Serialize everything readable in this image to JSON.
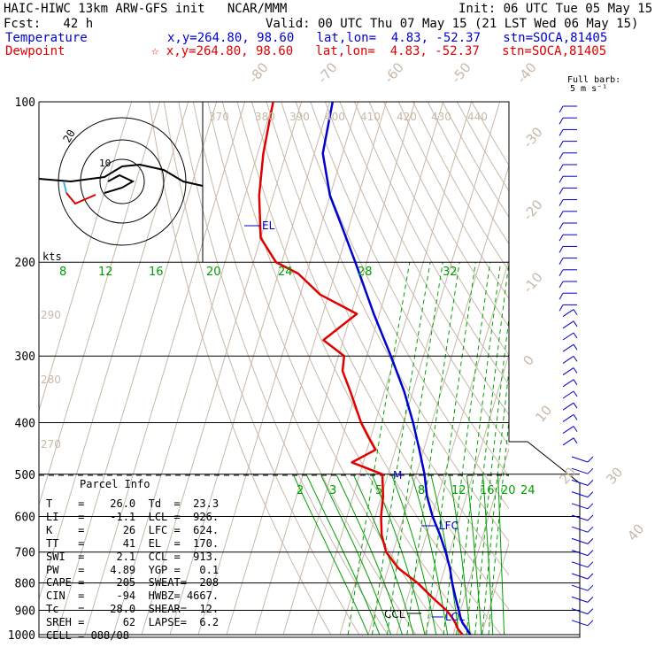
{
  "header": {
    "title": "HAIC-HIWC 13km ARW-GFS init   NCAR/MMM",
    "init": "Init: 06 UTC Tue 05 May 15",
    "fcst": "Fcst:   42 h",
    "valid": "Valid: 00 UTC Thu 07 May 15 (21 LST Wed 06 May 15)",
    "temp_label": "Temperature",
    "temp_loc": "x,y=264.80, 98.60   lat,lon=  4.83, -52.37   stn=SOCA,81405",
    "dew_label": "Dewpoint",
    "dew_loc": "☆ x,y=264.80, 98.60   lat,lon=  4.83, -52.37   stn=SOCA,81405",
    "barb_key_1": "Full barb:",
    "barb_key_2": "5 m s⁻¹"
  },
  "colors": {
    "temperature": "#0000d0",
    "dewpoint": "#e00000",
    "isotherm": "#c8b8a8",
    "mixing": "#00a000"
  },
  "chart_data": {
    "type": "line",
    "chart_kind": "skew-T log-P",
    "pressure_ticks": [
      "100",
      "200",
      "300",
      "400",
      "500",
      "600",
      "700",
      "800",
      "900",
      "1000"
    ],
    "pressure_levels": [
      100,
      200,
      300,
      400,
      500,
      600,
      700,
      800,
      900,
      1000
    ],
    "isotherm_labels": [
      "-80",
      "-70",
      "-60",
      "-50",
      "-40",
      "-30",
      "-20",
      "-10",
      "0",
      "10",
      "20",
      "30",
      "40"
    ],
    "theta_labels": [
      "370",
      "380",
      "390",
      "400",
      "410",
      "420",
      "430",
      "440"
    ],
    "theta_side_labels": [
      "290",
      "280",
      "270"
    ],
    "mixing_upper_labels": [
      "8",
      "12",
      "16",
      "20",
      "24",
      "28",
      "32"
    ],
    "mixing_lower_labels": [
      "2",
      "3",
      "5",
      "8",
      "12",
      "16",
      "20",
      "24"
    ],
    "temperature": {
      "name": "Temperature",
      "p": [
        1000,
        975,
        950,
        925,
        900,
        850,
        800,
        750,
        700,
        650,
        600,
        550,
        500,
        450,
        400,
        350,
        300,
        250,
        200,
        170,
        150,
        125,
        100
      ],
      "T": [
        26.0,
        24.1,
        22.0,
        20.6,
        19.4,
        16.8,
        14.2,
        11.8,
        8.6,
        4.8,
        0.2,
        -3.9,
        -7.1,
        -11.5,
        -16.6,
        -23.0,
        -31.5,
        -42.0,
        -54.0,
        -63.0,
        -70.0,
        -77.0,
        -79.0
      ]
    },
    "dewpoint": {
      "name": "Dewpoint",
      "p": [
        1000,
        975,
        950,
        925,
        900,
        850,
        800,
        750,
        700,
        650,
        600,
        550,
        500,
        475,
        450,
        425,
        400,
        350,
        320,
        300,
        280,
        250,
        230,
        210,
        200,
        180,
        150,
        125,
        100
      ],
      "Td": [
        23.3,
        21.0,
        19.5,
        17.5,
        15.0,
        8.5,
        2.0,
        -6.5,
        -12.4,
        -15.8,
        -18.0,
        -19.4,
        -22.0,
        -34.0,
        -27.0,
        -31.0,
        -35.0,
        -42.0,
        -47.0,
        -48.0,
        -57.0,
        -48.0,
        -63.0,
        -73.0,
        -82.0,
        -90.0,
        -95.0,
        -98.0,
        -100.0
      ]
    },
    "annotations": [
      "EL",
      "LFC",
      "CCL",
      "LCL",
      "M",
      "kts"
    ],
    "parcel_info": {
      "title": "Parcel Info",
      "rows": [
        "T    =    26.0  Td  =  23.3",
        "LI   =    -1.1  LCL =  926.",
        "K    =      26  LFC =  624.",
        "TT   =      41  EL  =  170.",
        "SWI  =     2.1  CCL =  913.",
        "PW   =    4.89  YGP =   0.1",
        "CAPE =     205  SWEAT=  208",
        "CIN  =     -94  HWBZ= 4667.",
        "Tc   =    28.0  SHEAR=  12.",
        "SREH =      62  LAPSE=  6.2",
        "CELL = 088/08"
      ]
    },
    "grid": true
  }
}
